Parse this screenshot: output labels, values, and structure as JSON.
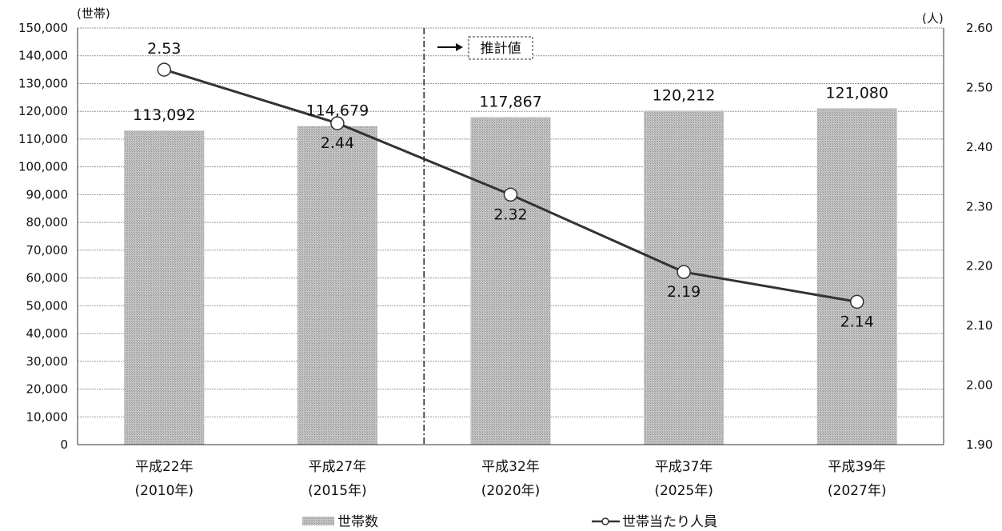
{
  "chart_data": {
    "type": "bar",
    "categories": [
      [
        "平成22年",
        "(2010年)"
      ],
      [
        "平成27年",
        "(2015年)"
      ],
      [
        "平成32年",
        "(2020年)"
      ],
      [
        "平成37年",
        "(2025年)"
      ],
      [
        "平成39年",
        "(2027年)"
      ]
    ],
    "series": [
      {
        "name": "世帯数",
        "type": "bar",
        "axis": "left",
        "values": [
          113092,
          114679,
          117867,
          120212,
          121080
        ],
        "labels": [
          "113,092",
          "114,679",
          "117,867",
          "120,212",
          "121,080"
        ]
      },
      {
        "name": "世帯当たり人員",
        "type": "line",
        "axis": "right",
        "values": [
          2.53,
          2.44,
          2.32,
          2.19,
          2.14
        ],
        "labels": [
          "2.53",
          "2.44",
          "2.32",
          "2.19",
          "2.14"
        ]
      }
    ],
    "y_left": {
      "unit": "(世帯)",
      "ylim": [
        0,
        150000
      ],
      "ticks": [
        "0",
        "10,000",
        "20,000",
        "30,000",
        "40,000",
        "50,000",
        "60,000",
        "70,000",
        "80,000",
        "90,000",
        "100,000",
        "110,000",
        "120,000",
        "130,000",
        "140,000",
        "150,000"
      ]
    },
    "y_right": {
      "unit": "(人)",
      "ylim": [
        1.9,
        2.6
      ],
      "ticks": [
        "1.90",
        "2.00",
        "2.10",
        "2.20",
        "2.30",
        "2.40",
        "2.50",
        "2.60"
      ]
    },
    "annotation": {
      "text": "推計値",
      "divider_between": [
        1,
        2
      ]
    },
    "grid": true,
    "legend": "bottom",
    "colors": {
      "bar": "#b9b9b9",
      "line": "#333333",
      "marker_fill": "#ffffff",
      "grid": "#9a9a9a"
    }
  }
}
